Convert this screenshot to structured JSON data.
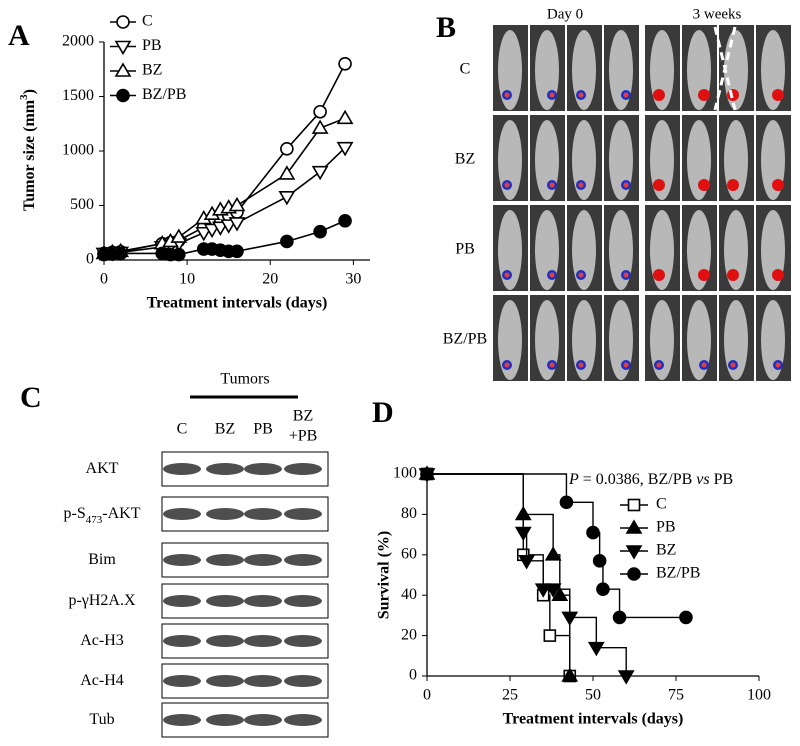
{
  "panel_labels": [
    "A",
    "B",
    "C",
    "D"
  ],
  "imaging": {
    "columns": [
      "Day 0",
      "3 weeks"
    ],
    "rows": [
      "C",
      "BZ",
      "PB",
      "BZ/PB"
    ]
  },
  "blot": {
    "group": "Tumors",
    "lanes": [
      [
        "C"
      ],
      [
        "BZ"
      ],
      [
        "PB"
      ],
      [
        "BZ",
        "+PB"
      ]
    ],
    "rows": [
      [
        "AKT"
      ],
      [
        "p-S",
        "473",
        "-AKT"
      ],
      [
        "Bim"
      ],
      [
        "p-γH2A.X"
      ],
      [
        "Ac-H3"
      ],
      [
        "Ac-H4"
      ],
      [
        "Tub"
      ]
    ]
  },
  "chart_data": [
    {
      "type": "line",
      "ylabel": [
        "Tumor size (mm",
        "3",
        ")"
      ],
      "xlabel": "Treatment intervals (days)",
      "x": [
        0,
        1,
        2,
        7,
        8,
        9,
        12,
        13,
        14,
        15,
        16,
        22,
        26,
        29
      ],
      "series": [
        {
          "name": "C",
          "color": "#000000",
          "marker": "circle-open",
          "values": [
            60,
            70,
            75,
            150,
            160,
            180,
            300,
            340,
            380,
            410,
            440,
            1020,
            1360,
            1800
          ]
        },
        {
          "name": "PB",
          "color": "#000000",
          "marker": "tri-down-open",
          "values": [
            60,
            65,
            70,
            120,
            130,
            150,
            250,
            280,
            300,
            320,
            340,
            580,
            810,
            1030
          ]
        },
        {
          "name": "BZ",
          "color": "#000000",
          "marker": "tri-up-open",
          "values": [
            60,
            70,
            80,
            150,
            170,
            210,
            380,
            420,
            460,
            480,
            500,
            790,
            1210,
            1300
          ]
        },
        {
          "name": "BZ/PB",
          "color": "#000000",
          "marker": "circle-filled",
          "values": [
            50,
            55,
            60,
            60,
            50,
            50,
            100,
            100,
            90,
            80,
            80,
            170,
            260,
            360
          ]
        }
      ],
      "xlim": [
        0,
        32
      ],
      "xticks": [
        0,
        10,
        20,
        30
      ],
      "ylim": [
        0,
        2000
      ],
      "yticks": [
        0,
        500,
        1000,
        1500,
        2000
      ]
    },
    {
      "type": "step",
      "ylabel": "Survival (%)",
      "xlabel": "Treatment intervals (days)",
      "annotation": [
        "P",
        " = 0.0386, BZ/PB ",
        "vs",
        " PB"
      ],
      "series": [
        {
          "name": "C",
          "color": "#000000",
          "marker": "square-open",
          "x": [
            0,
            29,
            35,
            37,
            43
          ],
          "values": [
            100,
            60,
            40,
            20,
            0
          ]
        },
        {
          "name": "PB",
          "color": "#000000",
          "marker": "tri-up-filled",
          "x": [
            0,
            29,
            38,
            40,
            43
          ],
          "values": [
            100,
            80,
            60,
            40,
            0
          ]
        },
        {
          "name": "BZ",
          "color": "#000000",
          "marker": "tri-down-filled",
          "x": [
            0,
            29,
            30,
            35,
            38,
            43,
            51,
            60
          ],
          "values": [
            100,
            71,
            57,
            43,
            43,
            29,
            14,
            0
          ]
        },
        {
          "name": "BZ/PB",
          "color": "#000000",
          "marker": "circle-filled",
          "x": [
            0,
            42,
            50,
            52,
            53,
            58,
            78
          ],
          "values": [
            100,
            86,
            71,
            57,
            43,
            29,
            29
          ]
        }
      ],
      "xlim": [
        0,
        100
      ],
      "xticks": [
        0,
        25,
        50,
        75,
        100
      ],
      "ylim": [
        0,
        100
      ],
      "yticks": [
        0,
        20,
        40,
        60,
        80,
        100
      ]
    }
  ]
}
